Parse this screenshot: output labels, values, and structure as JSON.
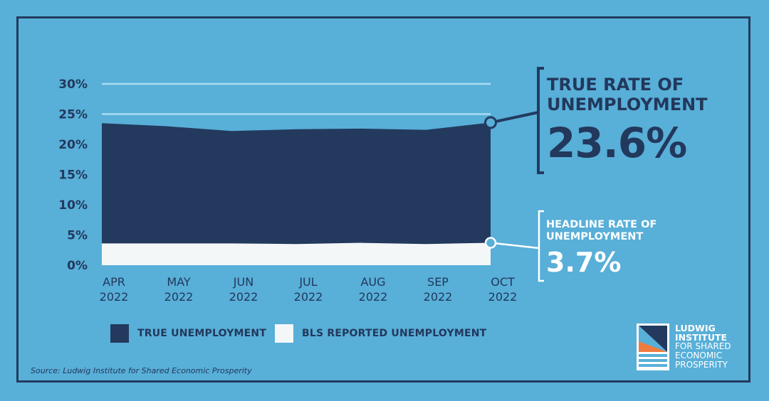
{
  "chart_data": {
    "type": "area",
    "categories": [
      "APR\n2022",
      "MAY\n2022",
      "JUN\n2022",
      "JUL\n2022",
      "AUG\n2022",
      "SEP\n2022",
      "OCT\n2022"
    ],
    "x_labels": [
      [
        "APR",
        "2022"
      ],
      [
        "MAY",
        "2022"
      ],
      [
        "JUN",
        "2022"
      ],
      [
        "JUL",
        "2022"
      ],
      [
        "AUG",
        "2022"
      ],
      [
        "SEP",
        "2022"
      ],
      [
        "OCT",
        "2022"
      ]
    ],
    "series": [
      {
        "name": "TRUE UNEMPLOYMENT",
        "values": [
          23.5,
          23.0,
          22.2,
          22.5,
          22.6,
          22.4,
          23.6
        ],
        "color": "#233a5e"
      },
      {
        "name": "BLS REPORTED UNEMPLOYMENT",
        "values": [
          3.6,
          3.6,
          3.6,
          3.5,
          3.7,
          3.5,
          3.7
        ],
        "color": "#f4f7f8"
      }
    ],
    "yticks": [
      "0%",
      "5%",
      "10%",
      "15%",
      "20%",
      "25%",
      "30%"
    ],
    "ytick_values": [
      0,
      5,
      10,
      15,
      20,
      25,
      30
    ],
    "ylim": [
      0,
      30
    ],
    "grid": true
  },
  "callouts": {
    "true_rate": {
      "line1": "TRUE RATE OF",
      "line2": "UNEMPLOYMENT",
      "value": "23.6%"
    },
    "headline_rate": {
      "line1": "HEADLINE RATE OF",
      "line2": "UNEMPLOYMENT",
      "value": "3.7%"
    }
  },
  "legend": {
    "true_label": "TRUE UNEMPLOYMENT",
    "bls_label": "BLS REPORTED UNEMPLOYMENT"
  },
  "source": "Source: Ludwig Institute for Shared Economic Prosperity",
  "logo": {
    "line1": "LUDWIG",
    "line2": "INSTITUTE",
    "line3": "FOR SHARED",
    "line4": "ECONOMIC",
    "line5": "PROSPERITY"
  },
  "colors": {
    "background": "#58afd8",
    "navy": "#233a5e",
    "white": "#f4f7f8"
  }
}
